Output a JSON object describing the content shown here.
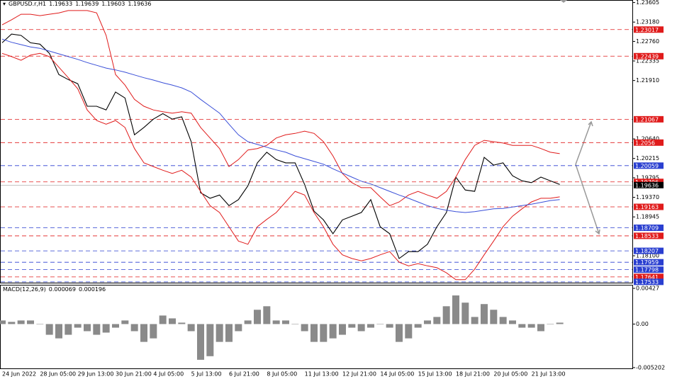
{
  "chart_data": [
    {
      "type": "line",
      "title": "GBPUSD.r,H1",
      "ohlc": [
        1.19633,
        1.19639,
        1.19603,
        1.19636
      ],
      "ylim": [
        1.175,
        1.2366
      ],
      "yticks": [
        1.23605,
        {
          "value": 1.2318,
          "label": "1.23180"
        },
        {
          "value": 1.2276,
          "label": "1.22760"
        },
        1.22335,
        {
          "value": 1.2191,
          "label": "1.21910"
        },
        {
          "value": 1.2064,
          "label": "1.20640"
        },
        1.20215,
        1.19795,
        {
          "value": 1.1937,
          "label": "1.19370"
        },
        1.18945,
        {
          "value": 1.181,
          "label": "1.18100"
        }
      ],
      "levels": [
        {
          "value": 1.23017,
          "color": "#e01b1b"
        },
        {
          "value": 1.22439,
          "color": "#e01b1b"
        },
        {
          "value": 1.21067,
          "color": "#e01b1b"
        },
        {
          "value": 1.2056,
          "color": "#e01b1b"
        },
        {
          "value": 1.20059,
          "color": "#2a3fd0"
        },
        {
          "value": 1.19706,
          "color": "#e01b1b"
        },
        {
          "value": 1.19163,
          "color": "#e01b1b"
        },
        {
          "value": 1.18709,
          "color": "#2a3fd0"
        },
        {
          "value": 1.18533,
          "color": "#e01b1b"
        },
        {
          "value": 1.18207,
          "color": "#2a3fd0"
        },
        {
          "value": 1.17959,
          "color": "#2a3fd0"
        },
        {
          "value": 1.17798,
          "color": "#2a3fd0"
        },
        {
          "value": 1.17641,
          "color": "#e01b1b"
        },
        {
          "value": 1.17533,
          "color": "#2a3fd0"
        }
      ],
      "series": [
        {
          "color": "#000000",
          "values": [
            1.2273,
            1.2292,
            1.2289,
            1.2273,
            1.227,
            1.225,
            1.2204,
            1.2193,
            1.2184,
            1.2135,
            1.2135,
            1.2127,
            1.2166,
            1.2153,
            1.2073,
            1.2089,
            1.2107,
            1.2119,
            1.2107,
            1.2112,
            1.2058,
            1.1947,
            1.1935,
            1.1942,
            1.1919,
            1.1932,
            1.1962,
            1.2012,
            1.2035,
            1.2019,
            1.2012,
            1.2012,
            1.1965,
            1.1907,
            1.1888,
            1.1858,
            1.1888,
            1.1896,
            1.1904,
            1.1932,
            1.1873,
            1.1858,
            1.1804,
            1.1819,
            1.1819,
            1.1835,
            1.1873,
            1.1904,
            1.1981,
            1.1953,
            1.195,
            1.2024,
            1.2007,
            1.2012,
            1.1984,
            1.1973,
            1.1969,
            1.1981,
            1.1973,
            1.1965
          ]
        },
        {
          "color": "#e01b1b",
          "values": [
            1.2312,
            1.2323,
            1.2335,
            1.2335,
            1.2332,
            1.2335,
            1.2338,
            1.2343,
            1.2343,
            1.2343,
            1.2338,
            1.2289,
            1.2204,
            1.2181,
            1.215,
            1.2135,
            1.2127,
            1.2123,
            1.212,
            1.2123,
            1.212,
            1.2089,
            1.2066,
            1.2043,
            1.2004,
            1.2019,
            1.204,
            1.2043,
            1.205,
            1.2066,
            1.2073,
            1.2076,
            1.2081,
            1.2076,
            1.2058,
            1.2027,
            1.1989,
            1.1969,
            1.1958,
            1.1958,
            1.1938,
            1.1919,
            1.1927,
            1.1942,
            1.195,
            1.1942,
            1.1935,
            1.195,
            1.1981,
            1.2019,
            1.205,
            1.2061,
            1.2058,
            1.2055,
            1.205,
            1.205,
            1.205,
            1.2043,
            1.2035,
            1.2032
          ]
        },
        {
          "color": "#e01b1b",
          "values": [
            1.225,
            1.2243,
            1.2235,
            1.2246,
            1.225,
            1.2243,
            1.222,
            1.2197,
            1.2173,
            1.2127,
            1.2104,
            1.2096,
            1.2104,
            1.2089,
            1.2043,
            1.2012,
            1.2004,
            1.1996,
            1.1989,
            1.1996,
            1.1981,
            1.195,
            1.1919,
            1.1904,
            1.1873,
            1.1842,
            1.1835,
            1.1873,
            1.1889,
            1.1904,
            1.1927,
            1.195,
            1.1942,
            1.1904,
            1.1873,
            1.1835,
            1.1812,
            1.1804,
            1.1799,
            1.1804,
            1.1812,
            1.1819,
            1.1796,
            1.1788,
            1.1793,
            1.1788,
            1.1784,
            1.1773,
            1.1758,
            1.1758,
            1.1781,
            1.1812,
            1.1842,
            1.1873,
            1.1896,
            1.1912,
            1.1927,
            1.1935,
            1.1935,
            1.1938
          ]
        },
        {
          "color": "#3a4fd8",
          "values": [
            1.2281,
            1.2274,
            1.2269,
            1.2264,
            1.2261,
            1.2255,
            1.2249,
            1.2243,
            1.2237,
            1.223,
            1.2224,
            1.2218,
            1.2214,
            1.2209,
            1.2203,
            1.2197,
            1.2192,
            1.2186,
            1.2181,
            1.2175,
            1.2166,
            1.215,
            1.2135,
            1.212,
            1.2096,
            1.2073,
            1.2058,
            1.2052,
            1.2046,
            1.204,
            1.2035,
            1.2027,
            1.2021,
            1.2015,
            1.2009,
            1.1999,
            1.199,
            1.1981,
            1.1972,
            1.1966,
            1.1958,
            1.195,
            1.1942,
            1.1935,
            1.1927,
            1.1919,
            1.1913,
            1.1909,
            1.1906,
            1.1904,
            1.1906,
            1.1909,
            1.1912,
            1.1913,
            1.1916,
            1.1919,
            1.1922,
            1.1926,
            1.193,
            1.1932
          ]
        }
      ]
    },
    {
      "type": "bar",
      "title": "MACD(12,26,9)",
      "macd_values": [
        6.9e-05,
        0.000196
      ],
      "color": "#8a8a8a",
      "ylim": [
        -0.00538,
        0.00461
      ],
      "yticks": [
        0.00427,
        {
          "value": 0,
          "label": "0.00"
        },
        -0.005202
      ],
      "categories": [
        "24 Jun 2022",
        null,
        null,
        null,
        "28 Jun 05:00",
        null,
        null,
        null,
        "29 Jun 13:00",
        null,
        null,
        null,
        "30 Jun 21:00",
        null,
        null,
        null,
        "4 Jul 05:00",
        null,
        null,
        null,
        "5 Jul 13:00",
        null,
        null,
        null,
        "6 Jul 21:00",
        null,
        null,
        null,
        "8 Jul 05:00",
        null,
        null,
        null,
        "11 Jul 13:00",
        null,
        null,
        null,
        "12 Jul 21:00",
        null,
        null,
        null,
        "14 Jul 05:00",
        null,
        null,
        null,
        "15 Jul 13:00",
        null,
        null,
        null,
        "18 Jul 21:00",
        null,
        null,
        null,
        "20 Jul 05:00",
        null,
        null,
        null,
        "21 Jul 13:00",
        null,
        null,
        null
      ],
      "values": [
        0.00043,
        0.00026,
        0.00043,
        0.00043,
        0,
        -0.00128,
        -0.00171,
        -0.00128,
        -0.00043,
        -0.00085,
        -0.00128,
        -0.00102,
        -0.00043,
        0.00043,
        -0.00085,
        -0.00213,
        -0.00171,
        0.00102,
        0.00068,
        0.00017,
        -0.00085,
        -0.00427,
        -0.00384,
        -0.00213,
        -0.00213,
        -0.00085,
        0.00043,
        0.00171,
        0.00213,
        0.00043,
        0.00043,
        0,
        -0.00085,
        -0.00213,
        -0.00213,
        -0.00171,
        -0.00128,
        -0.00043,
        -0.00085,
        -0.00043,
        0,
        -0.00043,
        -0.00213,
        -0.00171,
        -0.00043,
        0.00043,
        0.00085,
        0.00213,
        0.00342,
        0.00256,
        0.00085,
        0.00239,
        0.00171,
        0.00085,
        0.00043,
        -0.00043,
        -0.00043,
        -0.00085,
        0,
        0.00017
      ]
    }
  ]
}
